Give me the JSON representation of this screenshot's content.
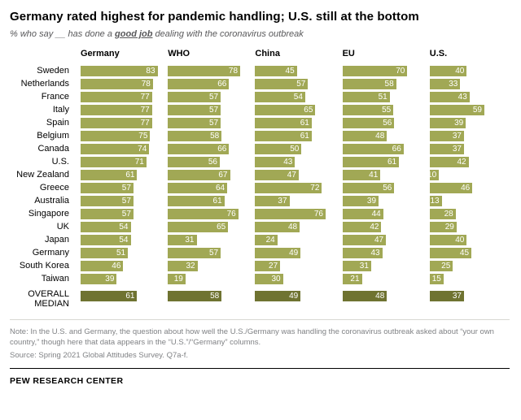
{
  "header": {
    "title": "Germany rated highest for pandemic handling; U.S. still at the bottom",
    "subtitle_prefix": "% who say __ has done a ",
    "subtitle_emphasis": "good job",
    "subtitle_suffix": " dealing with the coronavirus outbreak"
  },
  "chart_data": {
    "type": "bar",
    "title": "Germany rated highest for pandemic handling; U.S. still at the bottom",
    "xlabel": "",
    "ylabel": "",
    "xlim": [
      0,
      100
    ],
    "grid": false,
    "columns": [
      "Germany",
      "WHO",
      "China",
      "EU",
      "U.S."
    ],
    "rows": [
      {
        "label": "Sweden",
        "values": [
          83,
          78,
          45,
          70,
          40
        ]
      },
      {
        "label": "Netherlands",
        "values": [
          78,
          66,
          57,
          58,
          33
        ]
      },
      {
        "label": "France",
        "values": [
          77,
          57,
          54,
          51,
          43
        ]
      },
      {
        "label": "Italy",
        "values": [
          77,
          57,
          65,
          55,
          59
        ]
      },
      {
        "label": "Spain",
        "values": [
          77,
          57,
          61,
          56,
          39
        ]
      },
      {
        "label": "Belgium",
        "values": [
          75,
          58,
          61,
          48,
          37
        ]
      },
      {
        "label": "Canada",
        "values": [
          74,
          66,
          50,
          66,
          37
        ]
      },
      {
        "label": "U.S.",
        "values": [
          71,
          56,
          43,
          61,
          42
        ]
      },
      {
        "label": "New Zealand",
        "values": [
          61,
          67,
          47,
          41,
          10
        ]
      },
      {
        "label": "Greece",
        "values": [
          57,
          64,
          72,
          56,
          46
        ]
      },
      {
        "label": "Australia",
        "values": [
          57,
          61,
          37,
          39,
          13
        ]
      },
      {
        "label": "Singapore",
        "values": [
          57,
          76,
          76,
          44,
          28
        ]
      },
      {
        "label": "UK",
        "values": [
          54,
          65,
          48,
          42,
          29
        ]
      },
      {
        "label": "Japan",
        "values": [
          54,
          31,
          24,
          47,
          40
        ]
      },
      {
        "label": "Germany",
        "values": [
          51,
          57,
          49,
          43,
          45
        ]
      },
      {
        "label": "South Korea",
        "values": [
          46,
          32,
          27,
          31,
          25
        ]
      },
      {
        "label": "Taiwan",
        "values": [
          39,
          19,
          30,
          21,
          15
        ]
      }
    ],
    "median_row": {
      "label": "OVERALL MEDIAN",
      "values": [
        61,
        58,
        49,
        48,
        37
      ]
    },
    "colors": {
      "bar": "#a1a855",
      "median_bar": "#6f7331",
      "value_text": "#ffffff"
    }
  },
  "note": "Note: In the U.S. and Germany, the question about how well the U.S./Germany was handling the coronavirus outbreak asked about “your own country,” though here that data appears in the “U.S.”/“Germany” columns.",
  "source": "Source: Spring 2021 Global Attitudes Survey. Q7a-f.",
  "footer": "PEW RESEARCH CENTER"
}
